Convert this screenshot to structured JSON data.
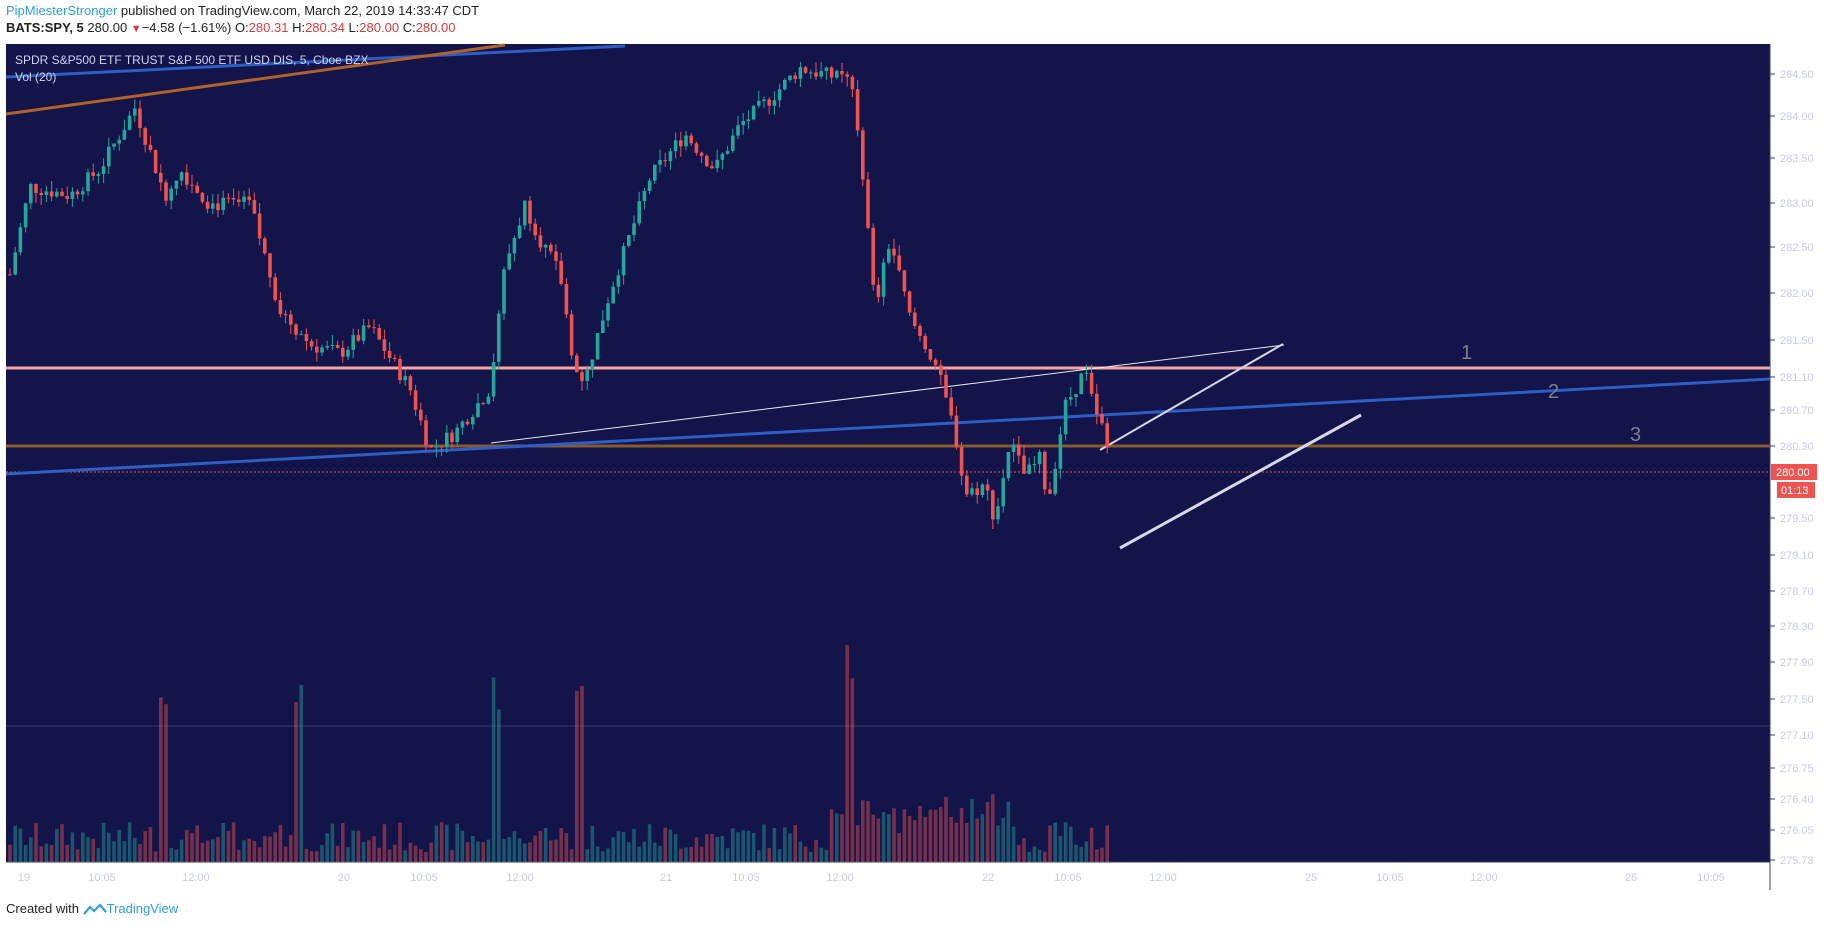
{
  "header": {
    "author": "PipMiesterStronger",
    "published_text": "published on TradingView.com, March 22, 2019 14:33:47 CDT",
    "symbol_line": "BATS:SPY, 5",
    "last": "280.00",
    "change": "−4.58 (−1.61%)",
    "open_label": "O:",
    "open": "280.31",
    "high_label": "H:",
    "high": "280.34",
    "low_label": "L:",
    "low": "280.00",
    "close_label": "C:",
    "close": "280.00"
  },
  "legend": {
    "title": "SPDR S&P500 ETF TRUST S&P 500 ETF USD DIS, 5, Cboe BZX",
    "volume": "Vol (20)"
  },
  "price_tag": {
    "value": "280.00",
    "countdown": "01:13"
  },
  "zone_labels": [
    "1",
    "2",
    "3"
  ],
  "footer": {
    "created_with": "Created with",
    "brand": "TradingView"
  },
  "colors": {
    "background": "#12144a",
    "up": "#26a69a",
    "down": "#ef5350",
    "level_1": "#f5a3a3",
    "level_3": "#8b5a2b",
    "trendline_blue": "#2e5dc4",
    "trendline_orange": "#b0622a"
  },
  "chart_data": {
    "type": "candlestick",
    "title": "SPDR S&P500 ETF TRUST S&P 500 ETF USD DIS, 5, Cboe BZX",
    "ylim": [
      275.73,
      284.75
    ],
    "y_ticks": [
      "284.50",
      "284.00",
      "283.50",
      "283.00",
      "282.50",
      "282.00",
      "281.50",
      "281.10",
      "280.70",
      "280.30",
      "279.50",
      "279.10",
      "278.70",
      "278.30",
      "277.90",
      "277.50",
      "277.10",
      "276.75",
      "276.40",
      "276.05",
      "275.73"
    ],
    "x_ticks": [
      "19",
      "10:05",
      "12:00",
      "20",
      "10:05",
      "12:00",
      "21",
      "10:05",
      "12:00",
      "22",
      "10:05",
      "12:00",
      "25",
      "10:05",
      "12:00",
      "26",
      "10:05"
    ],
    "horizontal_levels": [
      {
        "label": "1",
        "price": 281.18
      },
      {
        "label": "3",
        "price": 280.3
      },
      {
        "label": "",
        "price": 280.0,
        "style": "dotted"
      }
    ],
    "price_path": [
      [
        0,
        282.4
      ],
      [
        20,
        283.4
      ],
      [
        60,
        283.3
      ],
      [
        90,
        283.6
      ],
      [
        125,
        284.3
      ],
      [
        155,
        283.3
      ],
      [
        170,
        283.6
      ],
      [
        200,
        283.2
      ],
      [
        240,
        283.2
      ],
      [
        270,
        282.0
      ],
      [
        300,
        281.6
      ],
      [
        330,
        281.5
      ],
      [
        360,
        281.8
      ],
      [
        400,
        281.1
      ],
      [
        420,
        280.4
      ],
      [
        445,
        280.6
      ],
      [
        480,
        281.1
      ],
      [
        495,
        282.5
      ],
      [
        515,
        283.2
      ],
      [
        530,
        282.8
      ],
      [
        550,
        282.4
      ],
      [
        565,
        281.3
      ],
      [
        575,
        281.2
      ],
      [
        600,
        282.2
      ],
      [
        640,
        283.5
      ],
      [
        675,
        284.0
      ],
      [
        705,
        283.6
      ],
      [
        730,
        284.1
      ],
      [
        760,
        284.4
      ],
      [
        790,
        284.75
      ],
      [
        840,
        284.6
      ],
      [
        850,
        283.9
      ],
      [
        865,
        282.0
      ],
      [
        880,
        282.8
      ],
      [
        900,
        281.9
      ],
      [
        925,
        281.4
      ],
      [
        945,
        280.6
      ],
      [
        955,
        279.9
      ],
      [
        975,
        280.0
      ],
      [
        985,
        279.6
      ],
      [
        1000,
        280.5
      ],
      [
        1015,
        280.1
      ],
      [
        1030,
        280.3
      ],
      [
        1038,
        279.8
      ],
      [
        1055,
        280.9
      ],
      [
        1075,
        281.3
      ],
      [
        1085,
        280.8
      ],
      [
        1095,
        280.6
      ],
      [
        1102,
        280.0
      ]
    ],
    "volume_spikes_at": [
      155,
      290,
      485,
      567,
      842
    ]
  }
}
